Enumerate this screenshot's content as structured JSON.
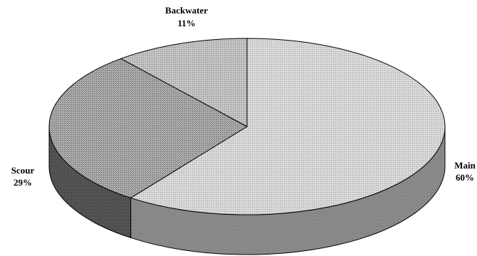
{
  "chart_data": {
    "type": "pie",
    "style": "3d-pie",
    "slices": [
      {
        "label": "Main",
        "value": 60,
        "value_label": "60%",
        "shade": "light-gray"
      },
      {
        "label": "Scour",
        "value": 29,
        "value_label": "29%",
        "shade": "dark-gray"
      },
      {
        "label": "Backwater",
        "value": 11,
        "value_label": "11%",
        "shade": "medium-gray"
      }
    ],
    "colors": {
      "main_top": "#d6d6d6",
      "main_side": "#8c8c8c",
      "scour_top": "#a4a4a4",
      "scour_side": "#5a5a5a",
      "backwater_top": "#b9b9b9",
      "outline": "#000000"
    },
    "legend": "none"
  }
}
